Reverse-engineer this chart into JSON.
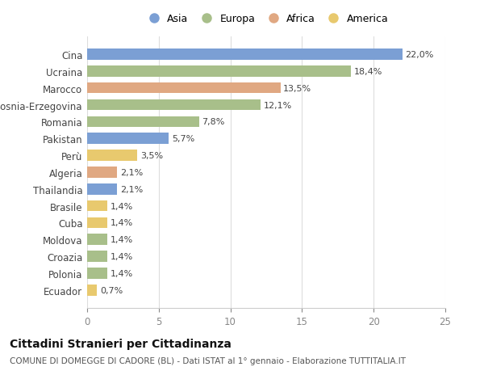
{
  "categories": [
    "Ecuador",
    "Polonia",
    "Croazia",
    "Moldova",
    "Cuba",
    "Brasile",
    "Thailandia",
    "Algeria",
    "Perù",
    "Pakistan",
    "Romania",
    "Bosnia-Erzegovina",
    "Marocco",
    "Ucraina",
    "Cina"
  ],
  "values": [
    0.7,
    1.4,
    1.4,
    1.4,
    1.4,
    1.4,
    2.1,
    2.1,
    3.5,
    5.7,
    7.8,
    12.1,
    13.5,
    18.4,
    22.0
  ],
  "labels": [
    "0,7%",
    "1,4%",
    "1,4%",
    "1,4%",
    "1,4%",
    "1,4%",
    "2,1%",
    "2,1%",
    "3,5%",
    "5,7%",
    "7,8%",
    "12,1%",
    "13,5%",
    "18,4%",
    "22,0%"
  ],
  "colors": [
    "#e8c96e",
    "#a8bf8a",
    "#a8bf8a",
    "#a8bf8a",
    "#e8c96e",
    "#e8c96e",
    "#7b9fd4",
    "#e0a882",
    "#e8c96e",
    "#7b9fd4",
    "#a8bf8a",
    "#a8bf8a",
    "#e0a882",
    "#a8bf8a",
    "#7b9fd4"
  ],
  "legend_labels": [
    "Asia",
    "Europa",
    "Africa",
    "America"
  ],
  "legend_colors": [
    "#7b9fd4",
    "#a8bf8a",
    "#e0a882",
    "#e8c96e"
  ],
  "xlim": [
    0,
    25
  ],
  "xticks": [
    0,
    5,
    10,
    15,
    20,
    25
  ],
  "title": "Cittadini Stranieri per Cittadinanza",
  "subtitle": "COMUNE DI DOMEGGE DI CADORE (BL) - Dati ISTAT al 1° gennaio - Elaborazione TUTTITALIA.IT",
  "background_color": "#ffffff",
  "bar_height": 0.65,
  "title_fontsize": 10,
  "subtitle_fontsize": 7.5,
  "label_fontsize": 8,
  "tick_fontsize": 8.5,
  "legend_fontsize": 9
}
